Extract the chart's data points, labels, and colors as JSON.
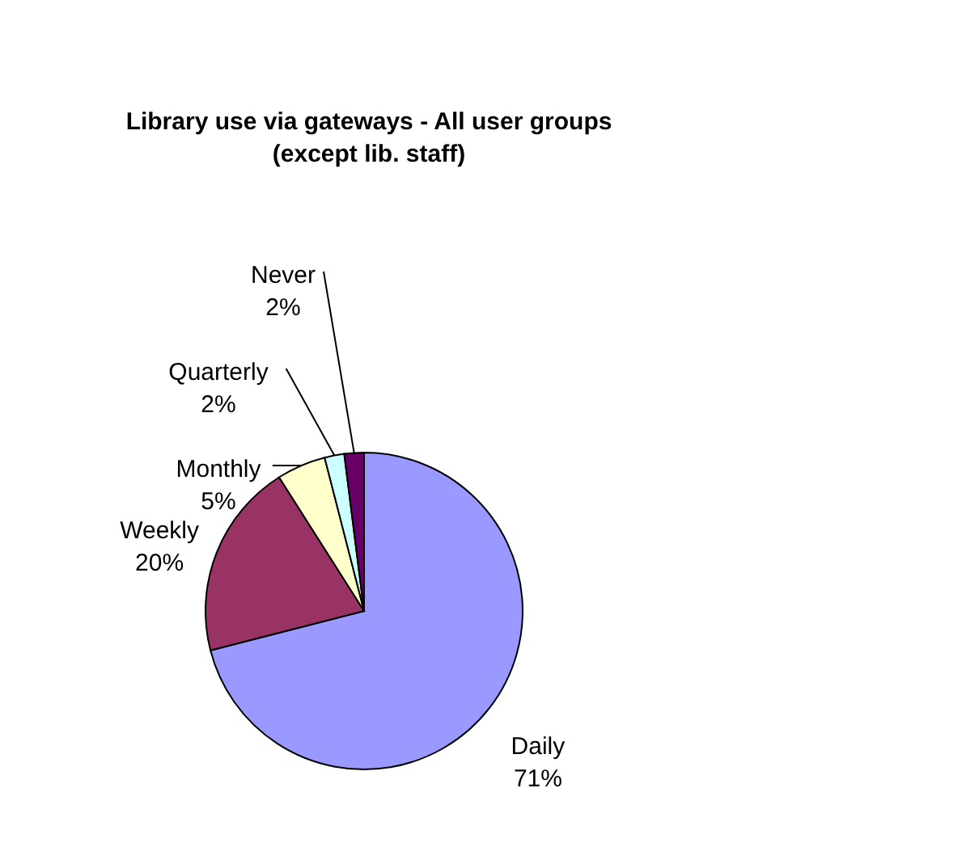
{
  "chart_data": {
    "type": "pie",
    "title": "Library use via gateways - All user groups\n(except lib. staff)",
    "categories": [
      "Daily",
      "Weekly",
      "Monthly",
      "Quarterly",
      "Never"
    ],
    "values": [
      71,
      20,
      5,
      2,
      2
    ],
    "value_labels": [
      "71%",
      "20%",
      "5%",
      "2%",
      "2%"
    ],
    "colors": [
      "#9999ff",
      "#993366",
      "#ffffcc",
      "#ccffff",
      "#660066"
    ]
  }
}
